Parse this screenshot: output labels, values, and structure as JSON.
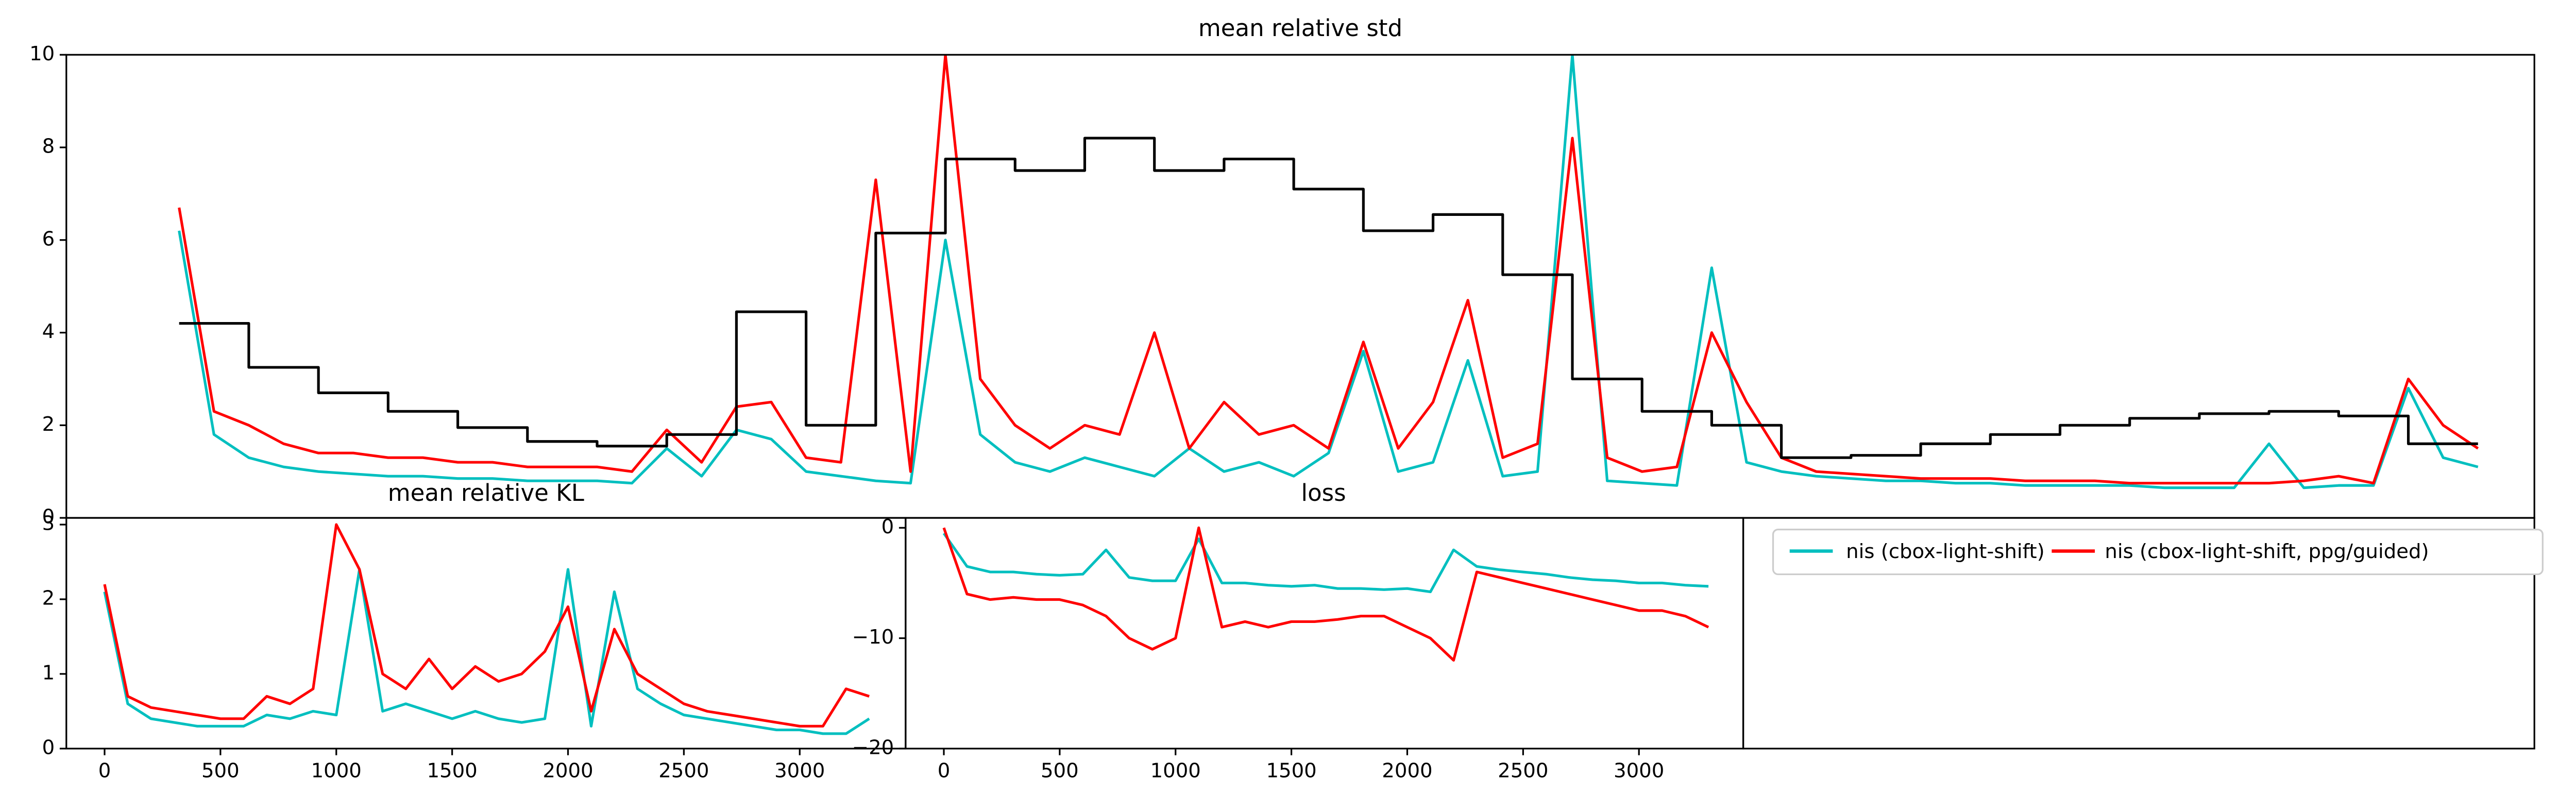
{
  "chart_data": [
    {
      "type": "line",
      "title": "mean relative std",
      "ylim": [
        0,
        10
      ],
      "yticks": [
        0,
        2,
        4,
        6,
        8,
        10
      ],
      "series": [
        {
          "name": "nis (cbox-light-shift)",
          "color": "#00bfbf",
          "values": [
            6.2,
            1.8,
            1.3,
            1.1,
            1.0,
            0.95,
            0.9,
            0.9,
            0.85,
            0.85,
            0.8,
            0.8,
            0.8,
            0.75,
            1.5,
            0.9,
            1.9,
            1.7,
            1.0,
            0.9,
            0.8,
            0.75,
            6.0,
            1.8,
            1.2,
            1.0,
            1.3,
            1.1,
            0.9,
            1.5,
            1.0,
            1.2,
            0.9,
            1.4,
            3.6,
            1.0,
            1.2,
            3.4,
            0.9,
            1.0,
            10,
            0.8,
            0.75,
            0.7,
            5.4,
            1.2,
            1.0,
            0.9,
            0.85,
            0.8,
            0.8,
            0.75,
            0.75,
            0.7,
            0.7,
            0.7,
            0.7,
            0.65,
            0.65,
            0.65,
            1.6,
            0.65,
            0.7,
            0.7,
            2.8,
            1.3,
            1.1
          ]
        },
        {
          "name": "nis (cbox-light-shift, ppg/guided)",
          "color": "#ff0000",
          "values": [
            6.7,
            2.3,
            2.0,
            1.6,
            1.4,
            1.4,
            1.3,
            1.3,
            1.2,
            1.2,
            1.1,
            1.1,
            1.1,
            1.0,
            1.9,
            1.2,
            2.4,
            2.5,
            1.3,
            1.2,
            7.3,
            1.0,
            10,
            3.0,
            2.0,
            1.5,
            2.0,
            1.8,
            4.0,
            1.5,
            2.5,
            1.8,
            2.0,
            1.5,
            3.8,
            1.5,
            2.5,
            4.7,
            1.3,
            1.6,
            8.2,
            1.3,
            1.0,
            1.1,
            4.0,
            2.5,
            1.3,
            1.0,
            0.95,
            0.9,
            0.85,
            0.85,
            0.85,
            0.8,
            0.8,
            0.8,
            0.75,
            0.75,
            0.75,
            0.75,
            0.75,
            0.8,
            0.9,
            0.75,
            3.0,
            2.0,
            1.5
          ]
        },
        {
          "color": "#000000",
          "drawstyle": "steps",
          "values": [
            4.2,
            3.25,
            2.7,
            2.3,
            1.95,
            1.65,
            1.55,
            1.8,
            4.45,
            2.0,
            6.15,
            7.75,
            7.5,
            8.2,
            7.5,
            7.75,
            7.1,
            6.2,
            6.55,
            5.25,
            3.0,
            2.3,
            2.0,
            1.3,
            1.35,
            1.6,
            1.8,
            2.0,
            2.15,
            2.25,
            2.3,
            2.2,
            1.6
          ]
        }
      ]
    },
    {
      "type": "line",
      "title": "mean relative KL",
      "xlim": [
        -165,
        3457
      ],
      "xticks": [
        0,
        500,
        1000,
        1500,
        2000,
        2500,
        3000
      ],
      "ylim": [
        0,
        3.09
      ],
      "yticks": [
        0,
        1,
        2,
        3
      ],
      "x": [
        0,
        100,
        200,
        300,
        400,
        500,
        600,
        700,
        800,
        900,
        1000,
        1100,
        1200,
        1300,
        1400,
        1500,
        1600,
        1700,
        1800,
        1900,
        2000,
        2100,
        2200,
        2300,
        2400,
        2500,
        2600,
        2700,
        2800,
        2900,
        3000,
        3100,
        3200,
        3300
      ],
      "series": [
        {
          "name": "nis (cbox-light-shift)",
          "color": "#00bfbf",
          "values": [
            2.1,
            0.6,
            0.4,
            0.35,
            0.3,
            0.3,
            0.3,
            0.45,
            0.4,
            0.5,
            0.45,
            2.4,
            0.5,
            0.6,
            0.5,
            0.4,
            0.5,
            0.4,
            0.35,
            0.4,
            2.4,
            0.3,
            2.1,
            0.8,
            0.6,
            0.45,
            0.4,
            0.35,
            0.3,
            0.25,
            0.25,
            0.2,
            0.2,
            0.4
          ]
        },
        {
          "name": "nis (cbox-light-shift, ppg/guided)",
          "color": "#ff0000",
          "values": [
            2.2,
            0.7,
            0.55,
            0.5,
            0.45,
            0.4,
            0.4,
            0.7,
            0.6,
            0.8,
            3.0,
            2.4,
            1.0,
            0.8,
            1.2,
            0.8,
            1.1,
            0.9,
            1.0,
            1.3,
            1.9,
            0.5,
            1.6,
            1.0,
            0.8,
            0.6,
            0.5,
            0.45,
            0.4,
            0.35,
            0.3,
            0.3,
            0.8,
            0.7
          ]
        }
      ]
    },
    {
      "type": "line",
      "title": "loss",
      "xlim": [
        -165,
        3450
      ],
      "xticks": [
        0,
        500,
        1000,
        1500,
        2000,
        2500,
        3000
      ],
      "ylim": [
        -20,
        0.9
      ],
      "yticks": [
        {
          "value": -20,
          "label": "−20"
        },
        {
          "value": -10,
          "label": "−10"
        },
        0
      ],
      "x": [
        0,
        100,
        200,
        300,
        400,
        500,
        600,
        700,
        800,
        900,
        1000,
        1100,
        1200,
        1300,
        1400,
        1500,
        1600,
        1700,
        1800,
        1900,
        2000,
        2100,
        2200,
        2300,
        2400,
        2500,
        2600,
        2700,
        2800,
        2900,
        3000,
        3100,
        3200,
        3300
      ],
      "series": [
        {
          "name": "nis (cbox-light-shift)",
          "color": "#00bfbf",
          "values": [
            -0.5,
            -3.5,
            -4,
            -4,
            -4.2,
            -4.3,
            -4.2,
            -2,
            -4.5,
            -4.8,
            -4.8,
            -1,
            -5,
            -5,
            -5.2,
            -5.3,
            -5.2,
            -5.5,
            -5.5,
            -5.6,
            -5.5,
            -5.8,
            -2,
            -3.5,
            -3.8,
            -4,
            -4.2,
            -4.5,
            -4.7,
            -4.8,
            -5,
            -5,
            -5.2,
            -5.3
          ]
        },
        {
          "name": "nis (cbox-light-shift, ppg/guided)",
          "color": "#ff0000",
          "values": [
            0,
            -6,
            -6.5,
            -6.3,
            -6.5,
            -6.5,
            -7,
            -8,
            -10,
            -11,
            -10,
            0,
            -9,
            -8.5,
            -9,
            -8.5,
            -8.5,
            -8.3,
            -8,
            -8,
            -9,
            -10,
            -12,
            -4,
            -4.5,
            -5,
            -5.5,
            -6,
            -6.5,
            -7,
            -7.5,
            -7.5,
            -8,
            -9
          ]
        }
      ]
    }
  ]
}
